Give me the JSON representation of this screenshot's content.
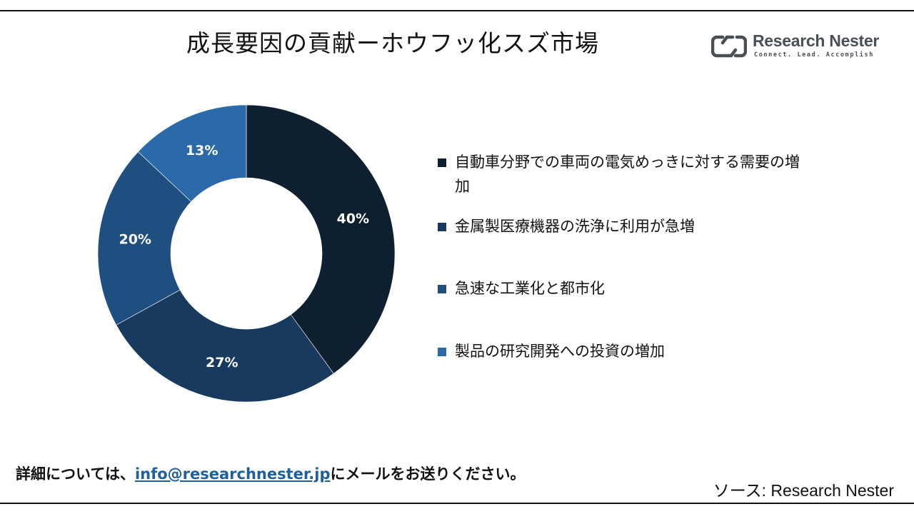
{
  "header": {
    "title": "成長要因の貢献ーホウフッ化スズ市場"
  },
  "logo": {
    "name": "Research Nester",
    "tagline": "Connect. Lead. Accomplish",
    "icon": "research-nester-logo-icon",
    "color": "#4a4f55"
  },
  "chart_data": {
    "type": "pie",
    "style": "donut",
    "start": "top (12 o'clock), clockwise",
    "categories": [
      "自動車分野での車両の電気めっきに対する需要の増加",
      "金属製医療機器の洗浄に利用が急増",
      "急速な工業化と都市化",
      "製品の研究開発への投資の増加"
    ],
    "values": [
      40,
      27,
      20,
      13
    ],
    "labels": [
      "40%",
      "27%",
      "20%",
      "13%"
    ],
    "colors": [
      "#0e1f30",
      "#173a5e",
      "#1f4f80",
      "#2a6aa8"
    ],
    "legend_placement": "right"
  },
  "footer": {
    "note_prefix": "詳細については、",
    "email": "info@researchnester.jp",
    "note_suffix": "にメールをお送りください。",
    "source": "ソース: Research Nester"
  }
}
